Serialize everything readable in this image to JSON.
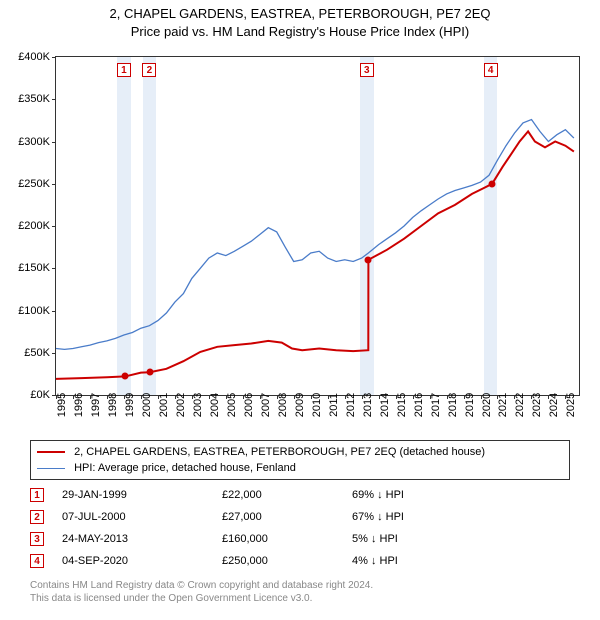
{
  "titles": {
    "line1": "2, CHAPEL GARDENS, EASTREA, PETERBOROUGH, PE7 2EQ",
    "line2": "Price paid vs. HM Land Registry's House Price Index (HPI)"
  },
  "chart": {
    "type": "line",
    "background_color": "#ffffff",
    "border_color": "#333333",
    "x": {
      "min": 1995,
      "max": 2025.8,
      "ticks": [
        1995,
        1996,
        1997,
        1998,
        1999,
        2000,
        2001,
        2002,
        2003,
        2004,
        2005,
        2006,
        2007,
        2008,
        2009,
        2010,
        2011,
        2012,
        2013,
        2014,
        2015,
        2016,
        2017,
        2018,
        2019,
        2020,
        2021,
        2022,
        2023,
        2024,
        2025
      ]
    },
    "y": {
      "min": 0,
      "max": 400000,
      "tick_step": 50000,
      "prefix": "£",
      "suffix": "K",
      "divisor": 1000
    },
    "band_color": "#e6eef8",
    "band_ranges": [
      [
        1998.6,
        1999.4
      ],
      [
        2000.1,
        2000.9
      ],
      [
        2012.9,
        2013.7
      ],
      [
        2020.2,
        2021.0
      ]
    ],
    "marker_box": {
      "border_color": "#cc0000",
      "text_color": "#cc0000",
      "fill": "#ffffff"
    },
    "markers_top": [
      {
        "n": "1",
        "x": 1999.0
      },
      {
        "n": "2",
        "x": 2000.5
      },
      {
        "n": "3",
        "x": 2013.3
      },
      {
        "n": "4",
        "x": 2020.6
      }
    ],
    "series": [
      {
        "id": "property",
        "color": "#cc0000",
        "width": 2,
        "label": "2, CHAPEL GARDENS, EASTREA, PETERBOROUGH, PE7 2EQ (detached house)",
        "points": [
          [
            1995.0,
            19000
          ],
          [
            1996.5,
            20000
          ],
          [
            1998.0,
            21000
          ],
          [
            1999.08,
            22000
          ],
          [
            2000.0,
            26500
          ],
          [
            2000.52,
            27000
          ],
          [
            2001.5,
            31000
          ],
          [
            2002.5,
            40000
          ],
          [
            2003.5,
            51000
          ],
          [
            2004.5,
            57000
          ],
          [
            2005.5,
            59000
          ],
          [
            2006.5,
            61000
          ],
          [
            2007.5,
            64000
          ],
          [
            2008.3,
            62000
          ],
          [
            2008.9,
            55000
          ],
          [
            2009.5,
            53000
          ],
          [
            2010.5,
            55000
          ],
          [
            2011.5,
            53000
          ],
          [
            2012.5,
            52000
          ],
          [
            2013.39,
            53000
          ],
          [
            2013.4,
            160000
          ],
          [
            2014.5,
            172000
          ],
          [
            2015.5,
            185000
          ],
          [
            2016.5,
            200000
          ],
          [
            2017.5,
            215000
          ],
          [
            2018.5,
            225000
          ],
          [
            2019.5,
            238000
          ],
          [
            2020.2,
            245000
          ],
          [
            2020.68,
            250000
          ],
          [
            2021.3,
            270000
          ],
          [
            2021.8,
            285000
          ],
          [
            2022.3,
            300000
          ],
          [
            2022.8,
            312000
          ],
          [
            2023.2,
            300000
          ],
          [
            2023.8,
            293000
          ],
          [
            2024.4,
            300000
          ],
          [
            2025.0,
            295000
          ],
          [
            2025.5,
            288000
          ]
        ]
      },
      {
        "id": "hpi",
        "color": "#4a7cc9",
        "width": 1.3,
        "label": "HPI: Average price, detached house, Fenland",
        "points": [
          [
            1995.0,
            55000
          ],
          [
            1995.5,
            54000
          ],
          [
            1996.0,
            55000
          ],
          [
            1996.5,
            57000
          ],
          [
            1997.0,
            59000
          ],
          [
            1997.5,
            62000
          ],
          [
            1998.0,
            64000
          ],
          [
            1998.5,
            67000
          ],
          [
            1999.0,
            71000
          ],
          [
            1999.5,
            74000
          ],
          [
            2000.0,
            79000
          ],
          [
            2000.5,
            82000
          ],
          [
            2001.0,
            88000
          ],
          [
            2001.5,
            97000
          ],
          [
            2002.0,
            110000
          ],
          [
            2002.5,
            120000
          ],
          [
            2003.0,
            138000
          ],
          [
            2003.5,
            150000
          ],
          [
            2004.0,
            162000
          ],
          [
            2004.5,
            168000
          ],
          [
            2005.0,
            165000
          ],
          [
            2005.5,
            170000
          ],
          [
            2006.0,
            176000
          ],
          [
            2006.5,
            182000
          ],
          [
            2007.0,
            190000
          ],
          [
            2007.5,
            198000
          ],
          [
            2008.0,
            193000
          ],
          [
            2008.5,
            175000
          ],
          [
            2009.0,
            158000
          ],
          [
            2009.5,
            160000
          ],
          [
            2010.0,
            168000
          ],
          [
            2010.5,
            170000
          ],
          [
            2011.0,
            162000
          ],
          [
            2011.5,
            158000
          ],
          [
            2012.0,
            160000
          ],
          [
            2012.5,
            158000
          ],
          [
            2013.0,
            162000
          ],
          [
            2013.4,
            168000
          ],
          [
            2014.0,
            178000
          ],
          [
            2014.5,
            185000
          ],
          [
            2015.0,
            192000
          ],
          [
            2015.5,
            200000
          ],
          [
            2016.0,
            210000
          ],
          [
            2016.5,
            218000
          ],
          [
            2017.0,
            225000
          ],
          [
            2017.5,
            232000
          ],
          [
            2018.0,
            238000
          ],
          [
            2018.5,
            242000
          ],
          [
            2019.0,
            245000
          ],
          [
            2019.5,
            248000
          ],
          [
            2020.0,
            252000
          ],
          [
            2020.5,
            260000
          ],
          [
            2021.0,
            278000
          ],
          [
            2021.5,
            295000
          ],
          [
            2022.0,
            310000
          ],
          [
            2022.5,
            322000
          ],
          [
            2023.0,
            326000
          ],
          [
            2023.5,
            312000
          ],
          [
            2024.0,
            300000
          ],
          [
            2024.5,
            308000
          ],
          [
            2025.0,
            314000
          ],
          [
            2025.5,
            304000
          ]
        ]
      }
    ],
    "sale_points": [
      {
        "x": 1999.08,
        "y": 22000,
        "color": "#cc0000"
      },
      {
        "x": 2000.52,
        "y": 27000,
        "color": "#cc0000"
      },
      {
        "x": 2013.4,
        "y": 160000,
        "color": "#cc0000"
      },
      {
        "x": 2020.68,
        "y": 250000,
        "color": "#cc0000"
      }
    ]
  },
  "legend": {
    "items": [
      {
        "color": "#cc0000",
        "width": 2,
        "label_ref": "chart.series.0.label"
      },
      {
        "color": "#4a7cc9",
        "width": 1.3,
        "label_ref": "chart.series.1.label"
      }
    ]
  },
  "sales": [
    {
      "n": "1",
      "date": "29-JAN-1999",
      "price": "£22,000",
      "diff": "69% ↓ HPI"
    },
    {
      "n": "2",
      "date": "07-JUL-2000",
      "price": "£27,000",
      "diff": "67% ↓ HPI"
    },
    {
      "n": "3",
      "date": "24-MAY-2013",
      "price": "£160,000",
      "diff": "5% ↓ HPI"
    },
    {
      "n": "4",
      "date": "04-SEP-2020",
      "price": "£250,000",
      "diff": "4% ↓ HPI"
    }
  ],
  "footer": {
    "line1": "Contains HM Land Registry data © Crown copyright and database right 2024.",
    "line2": "This data is licensed under the Open Government Licence v3.0."
  }
}
